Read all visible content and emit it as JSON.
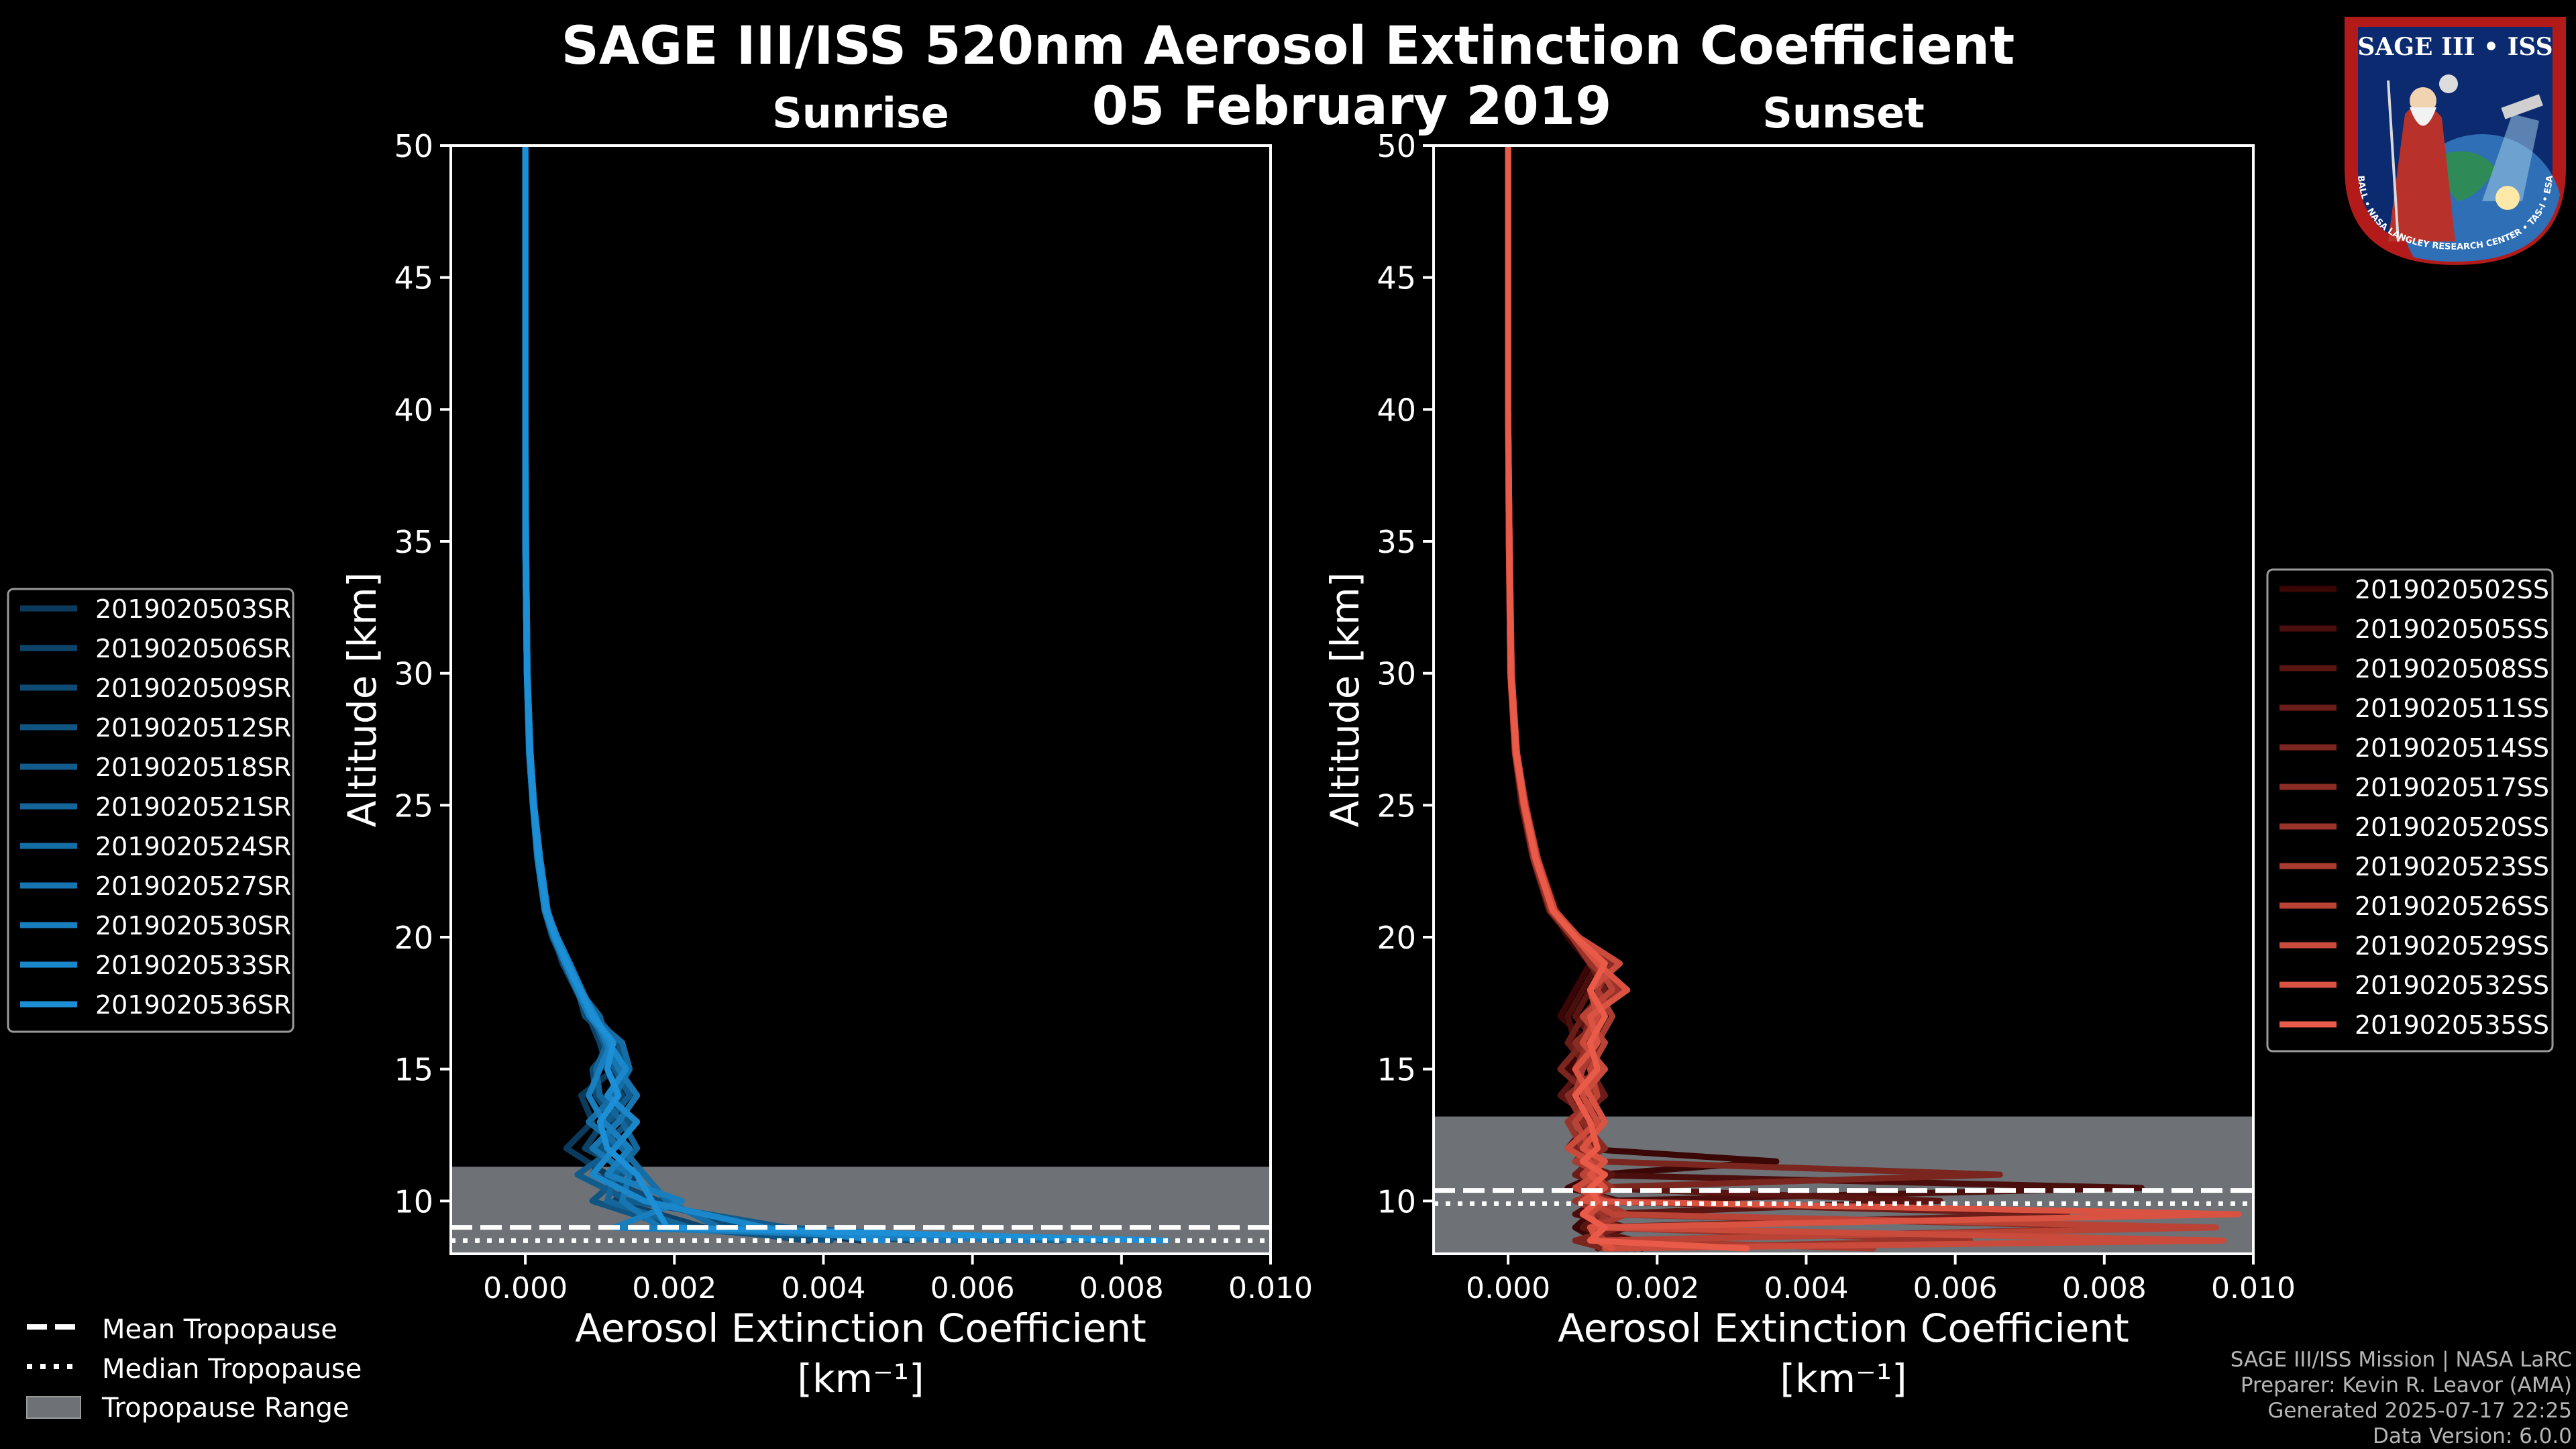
{
  "figure": {
    "title_line1": "SAGE III/ISS 520nm Aerosol Extinction Coefficient",
    "title_line2": "05 February 2019",
    "credits": [
      "SAGE III/ISS Mission | NASA LaRC",
      "Preparer: Kevin R. Leavor (AMA)",
      "Generated 2025-07-17 22:25",
      "Data Version: 6.0.0"
    ],
    "logo": {
      "text": "SAGE III • ISS",
      "ring_text": "BALL • NASA LANGLEY RESEARCH CENTER • TAS-I • ESA",
      "colors": {
        "ring": "#b31b1b",
        "navy": "#0b2a6f",
        "ocean": "#2f6fb5"
      }
    },
    "tropopause_legend": [
      {
        "label": "Mean Tropopause",
        "style": "dashed"
      },
      {
        "label": "Median Tropopause",
        "style": "dotted"
      },
      {
        "label": "Tropopause Range",
        "style": "band"
      }
    ],
    "colors": {
      "background": "#000000",
      "band": "#6e7175",
      "axis": "#ffffff"
    }
  },
  "chart_data": [
    {
      "type": "line",
      "title": "Sunrise",
      "xlabel": "Aerosol Extinction Coefficient",
      "xlabel_units": "[km⁻¹]",
      "ylabel": "Altitude [km]",
      "xlim": [
        -0.001,
        0.01
      ],
      "ylim": [
        8,
        50
      ],
      "xticks": [
        0.0,
        0.002,
        0.004,
        0.006,
        0.008,
        0.01
      ],
      "xtick_labels": [
        "0.000",
        "0.002",
        "0.004",
        "0.006",
        "0.008",
        "0.010"
      ],
      "yticks": [
        10,
        15,
        20,
        25,
        30,
        35,
        40,
        45,
        50
      ],
      "tropopause": {
        "mean": 9.0,
        "median": 8.5,
        "range": [
          8.0,
          11.3
        ]
      },
      "color_dark": "#0b3a5c",
      "color_light": "#1c8fd6",
      "altitudes": [
        50,
        45,
        40,
        35,
        30,
        27,
        25,
        23,
        21,
        20,
        19,
        18,
        17,
        16,
        15,
        14,
        13,
        12,
        11,
        10,
        9,
        8.5
      ],
      "series": [
        {
          "name": "2019020503SR",
          "values": [
            0.0,
            0.0,
            0.0,
            0.0,
            2e-05,
            6e-05,
            0.0001,
            0.00018,
            0.0003,
            0.0004,
            0.00055,
            0.0007,
            0.0009,
            0.0011,
            0.0012,
            0.00075,
            0.0009,
            0.00055,
            0.0011,
            0.0016,
            0.0031,
            0.0045
          ]
        },
        {
          "name": "2019020506SR",
          "values": [
            0.0,
            0.0,
            0.0,
            1e-05,
            3e-05,
            7e-05,
            0.00012,
            0.0002,
            0.00028,
            0.00038,
            0.0005,
            0.00068,
            0.00085,
            0.001,
            0.0011,
            0.0013,
            0.00105,
            0.0008,
            0.0015,
            0.0012,
            0.0024,
            0.0038
          ]
        },
        {
          "name": "2019020509SR",
          "values": [
            0.0,
            0.0,
            0.0,
            0.0,
            2e-05,
            5e-05,
            0.0001,
            0.00016,
            0.00026,
            0.00036,
            0.00052,
            0.0007,
            0.0008,
            0.0012,
            0.0009,
            0.00095,
            0.0012,
            0.0011,
            0.0009,
            0.0018,
            0.0028,
            0.0052
          ]
        },
        {
          "name": "2019020512SR",
          "values": [
            0.0,
            0.0,
            0.0,
            1e-05,
            3e-05,
            6e-05,
            0.00011,
            0.00019,
            0.00029,
            0.00042,
            0.00058,
            0.00075,
            0.00095,
            0.00125,
            0.0013,
            0.00115,
            0.0014,
            0.001,
            0.0013,
            0.0009,
            0.002,
            0.0041
          ]
        },
        {
          "name": "2019020518SR",
          "values": [
            0.0,
            0.0,
            0.0,
            0.0,
            2e-05,
            5e-05,
            0.0001,
            0.00017,
            0.00027,
            0.00039,
            0.00054,
            0.0007,
            0.0009,
            0.00105,
            0.0012,
            0.0014,
            0.0011,
            0.0012,
            0.0007,
            0.0014,
            0.0035,
            0.0064
          ]
        },
        {
          "name": "2019020521SR",
          "values": [
            0.0,
            0.0,
            0.0,
            1e-05,
            3e-05,
            7e-05,
            0.00012,
            0.0002,
            0.0003,
            0.00041,
            0.00057,
            0.00072,
            0.001,
            0.0011,
            0.00095,
            0.001,
            0.0013,
            0.0015,
            0.0012,
            0.0011,
            0.0022,
            0.0072
          ]
        },
        {
          "name": "2019020524SR",
          "values": [
            0.0,
            0.0,
            0.0,
            0.0,
            2e-05,
            6e-05,
            0.0001,
            0.00018,
            0.00028,
            0.0004,
            0.00055,
            0.00071,
            0.00088,
            0.0013,
            0.0014,
            0.0012,
            0.00085,
            0.0013,
            0.0016,
            0.0019,
            0.0026,
            0.0078
          ]
        },
        {
          "name": "2019020527SR",
          "values": [
            0.0,
            0.0,
            0.0,
            1e-05,
            3e-05,
            6e-05,
            0.00011,
            0.00019,
            0.00029,
            0.00043,
            0.0006,
            0.00076,
            0.00092,
            0.00108,
            0.00125,
            0.0015,
            0.00125,
            0.0009,
            0.0014,
            0.0013,
            0.0018,
            0.0058
          ]
        },
        {
          "name": "2019020530SR",
          "values": [
            0.0,
            0.0,
            0.0,
            0.0,
            2e-05,
            5e-05,
            0.0001,
            0.00016,
            0.00026,
            0.00038,
            0.00053,
            0.00069,
            0.00086,
            0.00115,
            0.001,
            0.00085,
            0.00105,
            0.0014,
            0.0011,
            0.0021,
            0.0012,
            0.0068
          ]
        },
        {
          "name": "2019020533SR",
          "values": [
            0.0,
            0.0,
            0.0,
            1e-05,
            3e-05,
            7e-05,
            0.00012,
            0.0002,
            0.0003,
            0.00042,
            0.00058,
            0.00074,
            0.00094,
            0.00112,
            0.00135,
            0.0011,
            0.0015,
            0.0012,
            0.0009,
            0.0016,
            0.0032,
            0.0048
          ]
        },
        {
          "name": "2019020536SR",
          "values": [
            0.0,
            0.0,
            0.0,
            0.0,
            2e-05,
            6e-05,
            0.00011,
            0.00018,
            0.00028,
            0.0004,
            0.00056,
            0.00073,
            0.0009,
            0.00118,
            0.0011,
            0.00125,
            0.001,
            0.0011,
            0.0015,
            0.0017,
            0.0019,
            0.0086
          ]
        }
      ]
    },
    {
      "type": "line",
      "title": "Sunset",
      "xlabel": "Aerosol Extinction Coefficient",
      "xlabel_units": "[km⁻¹]",
      "ylabel": "Altitude [km]",
      "xlim": [
        -0.001,
        0.01
      ],
      "ylim": [
        8,
        50
      ],
      "xticks": [
        0.0,
        0.002,
        0.004,
        0.006,
        0.008,
        0.01
      ],
      "xtick_labels": [
        "0.000",
        "0.002",
        "0.004",
        "0.006",
        "0.008",
        "0.010"
      ],
      "yticks": [
        10,
        15,
        20,
        25,
        30,
        35,
        40,
        45,
        50
      ],
      "tropopause": {
        "mean": 10.4,
        "median": 9.9,
        "range": [
          8.0,
          13.2
        ]
      },
      "color_dark": "#3a0606",
      "color_light": "#ea5a48",
      "altitudes": [
        50,
        45,
        40,
        35,
        30,
        27,
        25,
        23,
        21,
        20,
        19,
        18,
        17,
        16,
        15,
        14,
        13,
        12,
        11.5,
        11,
        10.5,
        10,
        9.5,
        9,
        8.5,
        8.2
      ],
      "series": [
        {
          "name": "2019020502SS",
          "values": [
            0.0,
            0.0,
            0.0,
            1e-05,
            4e-05,
            0.0001,
            0.00025,
            0.00035,
            0.0006,
            0.0008,
            0.0011,
            0.0009,
            0.0007,
            0.0011,
            0.0008,
            0.0012,
            0.001,
            0.0009,
            0.0036,
            0.0012,
            0.0008,
            0.0015,
            0.0011,
            0.0009,
            0.0012,
            0.0018
          ]
        },
        {
          "name": "2019020505SS",
          "values": [
            0.0,
            0.0,
            0.0,
            2e-05,
            5e-05,
            0.00012,
            0.0002,
            0.0004,
            0.00065,
            0.0009,
            0.0012,
            0.001,
            0.0008,
            0.0009,
            0.0013,
            0.0009,
            0.0011,
            0.0008,
            0.0013,
            0.0009,
            0.0085,
            0.0012,
            0.0009,
            0.0016,
            0.0011,
            0.0015
          ]
        },
        {
          "name": "2019020508SS",
          "values": [
            0.0,
            0.0,
            0.0,
            1e-05,
            3e-05,
            9e-05,
            0.00018,
            0.00033,
            0.00055,
            0.00085,
            0.0013,
            0.0011,
            0.0009,
            0.0012,
            0.001,
            0.0007,
            0.0012,
            0.0011,
            0.0009,
            0.0014,
            0.0011,
            0.0058,
            0.0012,
            0.001,
            0.0017,
            0.0012
          ]
        },
        {
          "name": "2019020511SS",
          "values": [
            0.0,
            0.0,
            0.0,
            2e-05,
            5e-05,
            0.00011,
            0.00022,
            0.00038,
            0.0006,
            0.0009,
            0.0011,
            0.0013,
            0.001,
            0.0008,
            0.0011,
            0.0013,
            0.0009,
            0.0012,
            0.0011,
            0.0009,
            0.0013,
            0.001,
            0.0075,
            0.0011,
            0.0014,
            0.0016
          ]
        },
        {
          "name": "2019020514SS",
          "values": [
            0.0,
            0.0,
            0.0,
            1e-05,
            4e-05,
            0.0001,
            0.0002,
            0.00036,
            0.00058,
            0.00088,
            0.0012,
            0.0014,
            0.0011,
            0.001,
            0.0007,
            0.0011,
            0.0013,
            0.0009,
            0.0012,
            0.0066,
            0.001,
            0.0013,
            0.0011,
            0.0015,
            0.0009,
            0.0013
          ]
        },
        {
          "name": "2019020517SS",
          "values": [
            0.0,
            0.0,
            0.0,
            2e-05,
            5e-05,
            0.00012,
            0.00024,
            0.0004,
            0.00062,
            0.00092,
            0.0014,
            0.0012,
            0.0013,
            0.0009,
            0.0012,
            0.0008,
            0.001,
            0.0013,
            0.001,
            0.0012,
            0.0009,
            0.0014,
            0.0012,
            0.0088,
            0.0013,
            0.0017
          ]
        },
        {
          "name": "2019020520SS",
          "values": [
            0.0,
            0.0,
            0.0,
            1e-05,
            3e-05,
            9e-05,
            0.0002,
            0.00034,
            0.00057,
            0.00086,
            0.0011,
            0.0015,
            0.0012,
            0.0011,
            0.0009,
            0.0012,
            0.0008,
            0.001,
            0.0013,
            0.0011,
            0.0014,
            0.0009,
            0.0013,
            0.0012,
            0.0062,
            0.0014
          ]
        },
        {
          "name": "2019020523SS",
          "values": [
            0.0,
            0.0,
            0.0,
            2e-05,
            4e-05,
            0.0001,
            0.00021,
            0.00037,
            0.00059,
            0.0009,
            0.0013,
            0.0012,
            0.0014,
            0.0012,
            0.001,
            0.0009,
            0.0011,
            0.0012,
            0.0009,
            0.0013,
            0.001,
            0.0012,
            0.0016,
            0.0011,
            0.0013,
            0.0049
          ]
        },
        {
          "name": "2019020526SS",
          "values": [
            0.0,
            0.0,
            0.0,
            1e-05,
            4e-05,
            0.00011,
            0.00022,
            0.00038,
            0.00061,
            0.00093,
            0.0012,
            0.0014,
            0.001,
            0.0013,
            0.0011,
            0.0012,
            0.0009,
            0.0011,
            0.0012,
            0.001,
            0.0012,
            0.0011,
            0.0014,
            0.0095,
            0.0012,
            0.0015
          ]
        },
        {
          "name": "2019020529SS",
          "values": [
            0.0,
            0.0,
            0.0,
            2e-05,
            5e-05,
            0.00012,
            0.00023,
            0.00039,
            0.00063,
            0.00095,
            0.0015,
            0.0011,
            0.0012,
            0.001,
            0.0013,
            0.001,
            0.0012,
            0.0008,
            0.0011,
            0.0012,
            0.0009,
            0.0013,
            0.0011,
            0.0012,
            0.0096,
            0.0013
          ]
        },
        {
          "name": "2019020532SS",
          "values": [
            0.0,
            0.0,
            0.0,
            1e-05,
            3e-05,
            0.0001,
            0.00021,
            0.00036,
            0.0006,
            0.0009,
            0.0012,
            0.0016,
            0.0011,
            0.0012,
            0.0009,
            0.0011,
            0.0013,
            0.001,
            0.0013,
            0.0011,
            0.0013,
            0.001,
            0.0098,
            0.0011,
            0.0012,
            0.0014
          ]
        },
        {
          "name": "2019020535SS",
          "values": [
            0.0,
            0.0,
            0.0,
            2e-05,
            4e-05,
            0.00011,
            0.00022,
            0.00037,
            0.0006,
            0.00091,
            0.0013,
            0.0011,
            0.0013,
            0.0011,
            0.0012,
            0.0009,
            0.0011,
            0.0012,
            0.001,
            0.0013,
            0.0011,
            0.0012,
            0.001,
            0.0013,
            0.0011,
            0.0032
          ]
        }
      ]
    }
  ]
}
